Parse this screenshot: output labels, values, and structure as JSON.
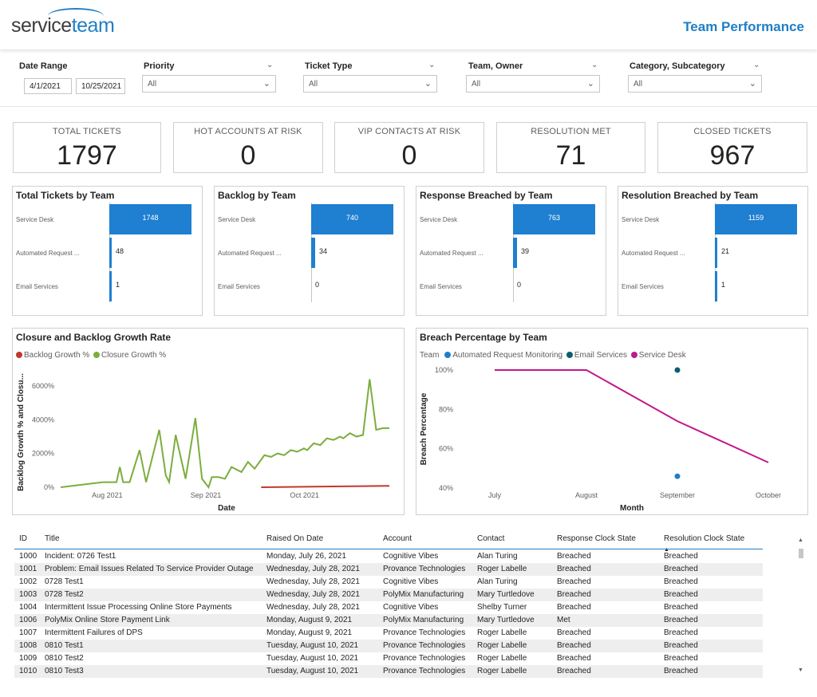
{
  "header": {
    "logo_part1": "service",
    "logo_part2": "team",
    "title": "Team Performance"
  },
  "filters": {
    "date_range_label": "Date Range",
    "date_start": "4/1/2021",
    "date_end": "10/25/2021",
    "priority_label": "Priority",
    "priority_value": "All",
    "ticket_type_label": "Ticket Type",
    "ticket_type_value": "All",
    "team_owner_label": "Team, Owner",
    "team_owner_value": "All",
    "category_label": "Category, Subcategory",
    "category_value": "All"
  },
  "cards": [
    {
      "label": "TOTAL TICKETS",
      "value": "1797"
    },
    {
      "label": "HOT ACCOUNTS AT RISK",
      "value": "0"
    },
    {
      "label": "VIP CONTACTS AT RISK",
      "value": "0"
    },
    {
      "label": "RESOLUTION MET",
      "value": "71"
    },
    {
      "label": "CLOSED TICKETS",
      "value": "967"
    }
  ],
  "bar_categories": [
    "Service Desk",
    "Automated Request ...",
    "Email Services"
  ],
  "bar_panels": [
    {
      "title": "Total Tickets by Team",
      "values": [
        1748,
        48,
        1
      ],
      "labels": [
        "1748",
        "48",
        "1"
      ]
    },
    {
      "title": "Backlog by Team",
      "values": [
        740,
        34,
        0
      ],
      "labels": [
        "740",
        "34",
        "0"
      ]
    },
    {
      "title": "Response Breached by Team",
      "values": [
        763,
        39,
        0
      ],
      "labels": [
        "763",
        "39",
        "0"
      ]
    },
    {
      "title": "Resolution Breached by Team",
      "values": [
        1159,
        21,
        1
      ],
      "labels": [
        "1159",
        "21",
        "1"
      ]
    }
  ],
  "colors": {
    "accent": "#1f7fc5",
    "bar": "#1f7fd0",
    "closure": "#7cad3e",
    "backlog": "#c0392b",
    "service_desk": "#c0198c",
    "automated": "#1f7fc5",
    "email": "#0b5e73"
  },
  "chart_data": [
    {
      "type": "line",
      "title": "Closure and Backlog Growth Rate",
      "xlabel": "Date",
      "ylabel": "Backlog Growth % and Closu...",
      "x_ticks": [
        "Aug 2021",
        "Sep 2021",
        "Oct 2021"
      ],
      "y_ticks": [
        "0%",
        "2000%",
        "4000%",
        "6000%"
      ],
      "ylim": [
        0,
        6800
      ],
      "xlim": [
        0,
        100
      ],
      "legend": "top-left",
      "series": [
        {
          "name": "Backlog Growth %",
          "color": "#c0392b",
          "x": [
            61,
            100
          ],
          "y": [
            0,
            80
          ]
        },
        {
          "name": "Closure Growth %",
          "color": "#7cad3e",
          "x": [
            0,
            13,
            17,
            18,
            19,
            21,
            24,
            26,
            30,
            32,
            33,
            35,
            38,
            41,
            43,
            45,
            46,
            48,
            50,
            52,
            55,
            57,
            59,
            62,
            64,
            66,
            68,
            70,
            72,
            74,
            75,
            77,
            79,
            81,
            83,
            85,
            86,
            88,
            90,
            92,
            94,
            96,
            98,
            100
          ],
          "y": [
            0,
            300,
            300,
            1200,
            300,
            300,
            2200,
            300,
            3400,
            700,
            300,
            3100,
            500,
            4100,
            500,
            0,
            600,
            600,
            500,
            1200,
            900,
            1500,
            1100,
            1900,
            1800,
            2000,
            1900,
            2200,
            2100,
            2300,
            2200,
            2600,
            2500,
            2900,
            2800,
            3000,
            2900,
            3200,
            3000,
            3100,
            6400,
            3400,
            3500,
            3500
          ]
        }
      ]
    },
    {
      "type": "line",
      "title": "Breach Percentage by Team",
      "xlabel": "Month",
      "ylabel": "Breach Percentage",
      "categories": [
        "July",
        "August",
        "September",
        "October"
      ],
      "y_ticks": [
        "40%",
        "60%",
        "80%",
        "100%"
      ],
      "ylim": [
        40,
        100
      ],
      "legend_title": "Team",
      "legend": "top-left",
      "series": [
        {
          "name": "Automated Request Monitoring",
          "color": "#1f7fc5",
          "values": [
            null,
            null,
            46,
            null
          ]
        },
        {
          "name": "Email Services",
          "color": "#0b5e73",
          "values": [
            null,
            null,
            100,
            null
          ]
        },
        {
          "name": "Service Desk",
          "color": "#c0198c",
          "values": [
            100,
            100,
            74,
            53
          ]
        }
      ]
    }
  ],
  "table": {
    "columns": [
      "ID",
      "Title",
      "Raised On Date",
      "Account",
      "Contact",
      "Response Clock State",
      "Resolution Clock State"
    ],
    "rows": [
      [
        "1000",
        "Incident: 0726 Test1",
        "Monday, July 26, 2021",
        "Cognitive Vibes",
        "Alan Turing",
        "Breached",
        "Breached"
      ],
      [
        "1001",
        "Problem: Email Issues Related To Service Provider Outage",
        "Wednesday, July 28, 2021",
        "Provance Technologies",
        "Roger Labelle",
        "Breached",
        "Breached"
      ],
      [
        "1002",
        "0728 Test1",
        "Wednesday, July 28, 2021",
        "Cognitive Vibes",
        "Alan Turing",
        "Breached",
        "Breached"
      ],
      [
        "1003",
        "0728 Test2",
        "Wednesday, July 28, 2021",
        "PolyMix Manufacturing",
        "Mary Turtledove",
        "Breached",
        "Breached"
      ],
      [
        "1004",
        "Intermittent Issue Processing Online Store Payments",
        "Wednesday, July 28, 2021",
        "Cognitive Vibes",
        "Shelby Turner",
        "Breached",
        "Breached"
      ],
      [
        "1006",
        "PolyMix Online Store Payment Link",
        "Monday, August 9, 2021",
        "PolyMix Manufacturing",
        "Mary Turtledove",
        "Met",
        "Breached"
      ],
      [
        "1007",
        "Intermittent Failures of DPS",
        "Monday, August 9, 2021",
        "Provance Technologies",
        "Roger Labelle",
        "Breached",
        "Breached"
      ],
      [
        "1008",
        "0810 Test1",
        "Tuesday, August 10, 2021",
        "Provance Technologies",
        "Roger Labelle",
        "Breached",
        "Breached"
      ],
      [
        "1009",
        "0810 Test2",
        "Tuesday, August 10, 2021",
        "Provance Technologies",
        "Roger Labelle",
        "Breached",
        "Breached"
      ],
      [
        "1010",
        "0810 Test3",
        "Tuesday, August 10, 2021",
        "Provance Technologies",
        "Roger Labelle",
        "Breached",
        "Breached"
      ]
    ]
  }
}
